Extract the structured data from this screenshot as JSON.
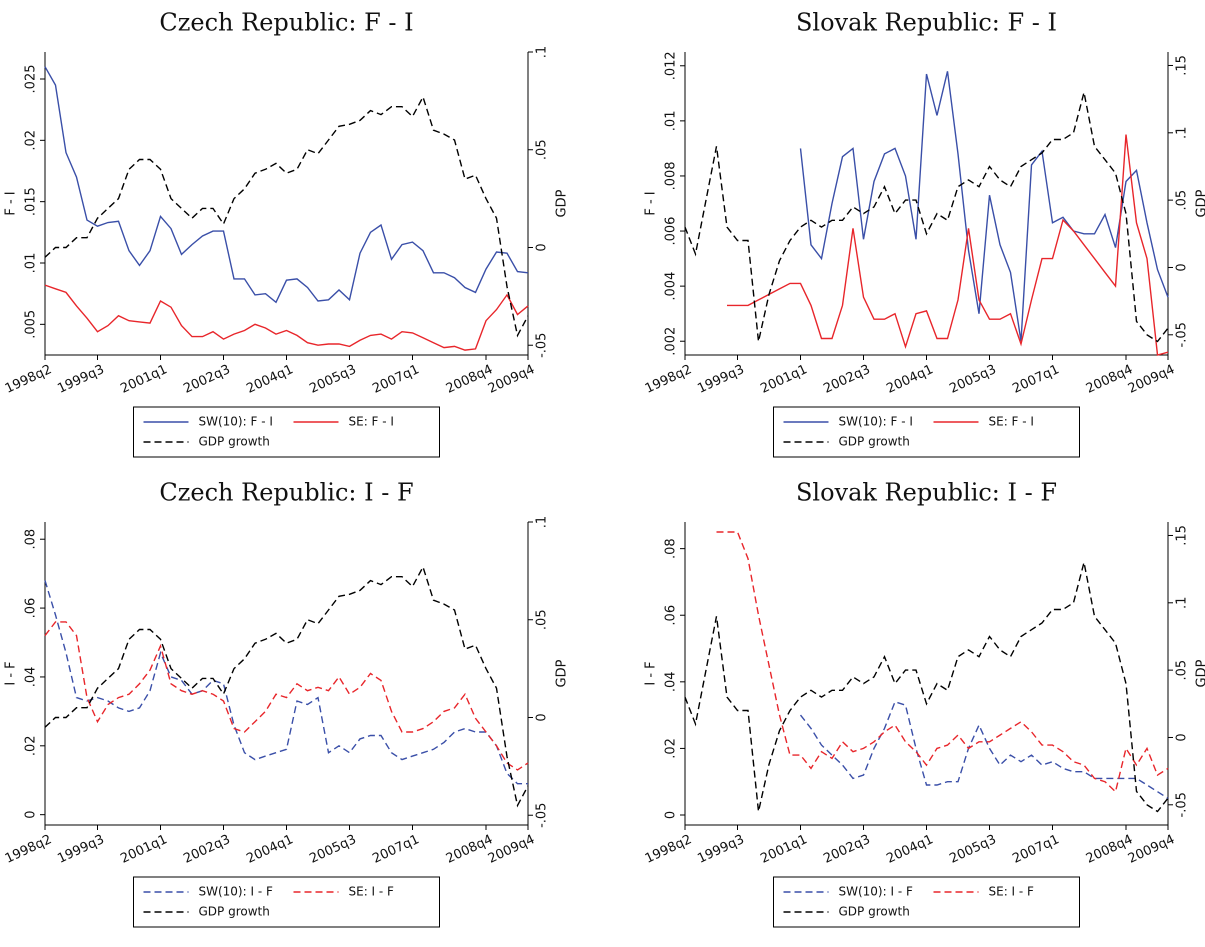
{
  "chart_data": [
    {
      "type": "line",
      "title": "Czech Republic: F - I",
      "ylabel": "F - I",
      "y2label": "GDP",
      "legend": "bottom",
      "categories": [
        "1998q2",
        null,
        null,
        null,
        null,
        "1999q3",
        null,
        null,
        null,
        null,
        null,
        "2001q1",
        null,
        null,
        null,
        null,
        null,
        "2002q3",
        null,
        null,
        null,
        null,
        null,
        "2004q1",
        null,
        null,
        null,
        null,
        null,
        "2005q3",
        null,
        null,
        null,
        null,
        null,
        "2007q1",
        null,
        null,
        null,
        null,
        null,
        null,
        "2008q4",
        null,
        null,
        null,
        "2009q4"
      ],
      "ylim": [
        0.0025,
        0.0272
      ],
      "yticks": [
        {
          "value": 0.005,
          "label": ".005"
        },
        {
          "value": 0.01,
          "label": ".01"
        },
        {
          "value": 0.015,
          "label": ".015"
        },
        {
          "value": 0.02,
          "label": ".02"
        },
        {
          "value": 0.025,
          "label": ".025"
        }
      ],
      "y2lim": [
        -0.055,
        0.1
      ],
      "y2ticks": [
        {
          "value": -0.05,
          "label": "-.05"
        },
        0,
        {
          "value": 0.05,
          "label": ".05"
        },
        {
          "value": 0.1,
          "label": ".1"
        }
      ],
      "series": [
        {
          "name": "SW(10): F - I",
          "color": "#3a4fa8",
          "dashed": false,
          "values": [
            0.026,
            0.0245,
            0.019,
            0.017,
            0.0135,
            0.013,
            0.0133,
            0.0134,
            0.011,
            0.0098,
            0.011,
            0.0138,
            0.0128,
            0.0107,
            0.0115,
            0.0122,
            0.0126,
            0.0126,
            0.0087,
            0.0087,
            0.0074,
            0.0075,
            0.0068,
            0.0086,
            0.0087,
            0.008,
            0.0069,
            0.007,
            0.0078,
            0.007,
            0.0108,
            0.0125,
            0.0131,
            0.0103,
            0.0115,
            0.0117,
            0.011,
            0.0092,
            0.0092,
            0.0088,
            0.008,
            0.0076,
            0.0095,
            0.0109,
            0.0108,
            0.0093,
            0.0092
          ]
        },
        {
          "name": "SE: F - I",
          "color": "#e8262b",
          "dashed": false,
          "values": [
            0.0082,
            0.0079,
            0.0076,
            0.0065,
            0.0055,
            0.0044,
            0.0049,
            0.0057,
            0.0053,
            0.0052,
            0.0051,
            0.0069,
            0.0064,
            0.0049,
            0.004,
            0.004,
            0.0044,
            0.0038,
            0.0042,
            0.0045,
            0.005,
            0.0047,
            0.0042,
            0.0045,
            0.0041,
            0.0035,
            0.0033,
            0.0034,
            0.0034,
            0.0032,
            0.0037,
            0.0041,
            0.0042,
            0.0038,
            0.0044,
            0.0043,
            0.0039,
            0.0035,
            0.0031,
            0.0032,
            0.0029,
            0.003,
            0.0053,
            0.0062,
            0.0074,
            0.0058,
            0.0065
          ]
        },
        {
          "name": "GDP growth",
          "color": "#000000",
          "dashed": true,
          "axis": "y2",
          "values": [
            -0.005,
            0,
            0,
            0.005,
            0.005,
            0.015,
            0.02,
            0.025,
            0.04,
            0.045,
            0.045,
            0.04,
            0.025,
            0.02,
            0.015,
            0.02,
            0.02,
            0.012,
            0.025,
            0.03,
            0.038,
            0.04,
            0.043,
            0.038,
            0.04,
            0.05,
            0.048,
            0.055,
            0.062,
            0.063,
            0.065,
            0.07,
            0.068,
            0.072,
            0.072,
            0.067,
            0.077,
            0.06,
            0.058,
            0.055,
            0.035,
            0.037,
            0.025,
            0.015,
            -0.02,
            -0.045,
            -0.035
          ]
        }
      ]
    },
    {
      "type": "line",
      "title": "Slovak Republic: F - I",
      "ylabel": "F - I",
      "y2label": "GDP",
      "legend": "bottom",
      "categories": [
        "1998q2",
        null,
        null,
        null,
        null,
        "1999q3",
        null,
        null,
        null,
        null,
        null,
        "2001q1",
        null,
        null,
        null,
        null,
        null,
        "2002q3",
        null,
        null,
        null,
        null,
        null,
        "2004q1",
        null,
        null,
        null,
        null,
        null,
        "2005q3",
        null,
        null,
        null,
        null,
        null,
        "2007q1",
        null,
        null,
        null,
        null,
        null,
        null,
        "2008q4",
        null,
        null,
        null,
        "2009q4"
      ],
      "ylim": [
        0.0015,
        0.0125
      ],
      "yticks": [
        {
          "value": 0.002,
          "label": ".002"
        },
        {
          "value": 0.004,
          "label": ".004"
        },
        {
          "value": 0.006,
          "label": ".006"
        },
        {
          "value": 0.008,
          "label": ".008"
        },
        {
          "value": 0.01,
          "label": ".01"
        },
        {
          "value": 0.012,
          "label": ".012"
        }
      ],
      "y2lim": [
        -0.065,
        0.16
      ],
      "y2ticks": [
        {
          "value": -0.05,
          "label": "-.05"
        },
        0,
        {
          "value": 0.05,
          "label": ".05"
        },
        {
          "value": 0.1,
          "label": ".1"
        },
        {
          "value": 0.15,
          "label": ".15"
        }
      ],
      "series": [
        {
          "name": "SW(10): F - I",
          "color": "#3a4fa8",
          "dashed": false,
          "values": [
            null,
            null,
            null,
            null,
            null,
            null,
            null,
            null,
            null,
            null,
            null,
            0.009,
            0.0055,
            0.005,
            0.007,
            0.0087,
            0.009,
            0.0057,
            0.0078,
            0.0088,
            0.009,
            0.008,
            0.0057,
            0.0117,
            0.0102,
            0.0118,
            0.0088,
            0.0053,
            0.003,
            0.0073,
            0.0055,
            0.0045,
            0.002,
            0.0084,
            0.0089,
            0.0063,
            0.0065,
            0.006,
            0.0059,
            0.0059,
            0.0066,
            0.0054,
            0.0078,
            0.0082,
            0.0063,
            0.0046,
            0.0036
          ]
        },
        {
          "name": "SE: F - I",
          "color": "#e8262b",
          "dashed": false,
          "values": [
            null,
            null,
            null,
            null,
            0.0033,
            0.0033,
            0.0033,
            0.0035,
            0.0037,
            0.0039,
            0.0041,
            0.0041,
            0.0033,
            0.0021,
            0.0021,
            0.0033,
            0.0061,
            0.0036,
            0.0028,
            0.0028,
            0.003,
            0.0018,
            0.003,
            0.0031,
            0.0021,
            0.0021,
            0.0035,
            0.0061,
            0.0035,
            0.0028,
            0.0028,
            0.003,
            0.0019,
            0.0035,
            0.005,
            0.005,
            0.0064,
            0.006,
            0.0055,
            0.005,
            0.0045,
            0.004,
            0.0095,
            0.0063,
            0.005,
            0.0015,
            0.0016
          ]
        },
        {
          "name": "GDP growth",
          "color": "#000000",
          "dashed": true,
          "axis": "y2",
          "values": [
            0.03,
            0.01,
            0.05,
            0.09,
            0.03,
            0.02,
            0.02,
            -0.055,
            -0.02,
            0.005,
            0.02,
            0.03,
            0.035,
            0.03,
            0.035,
            0.035,
            0.045,
            0.04,
            0.045,
            0.06,
            0.04,
            0.05,
            0.05,
            0.025,
            0.04,
            0.035,
            0.06,
            0.065,
            0.06,
            0.075,
            0.065,
            0.06,
            0.075,
            0.08,
            0.085,
            0.095,
            0.095,
            0.1,
            0.13,
            0.09,
            0.08,
            0.07,
            0.04,
            -0.04,
            -0.05,
            -0.055,
            -0.045
          ]
        }
      ]
    },
    {
      "type": "line",
      "title": "Czech Republic: I - F",
      "ylabel": "I - F",
      "y2label": "GDP",
      "legend": "bottom",
      "categories": [
        "1998q2",
        null,
        null,
        null,
        null,
        "1999q3",
        null,
        null,
        null,
        null,
        null,
        "2001q1",
        null,
        null,
        null,
        null,
        null,
        "2002q3",
        null,
        null,
        null,
        null,
        null,
        "2004q1",
        null,
        null,
        null,
        null,
        null,
        "2005q3",
        null,
        null,
        null,
        null,
        null,
        "2007q1",
        null,
        null,
        null,
        null,
        null,
        null,
        "2008q4",
        null,
        null,
        null,
        "2009q4"
      ],
      "ylim": [
        -0.003,
        0.085
      ],
      "yticks": [
        0,
        {
          "value": 0.02,
          "label": ".02"
        },
        {
          "value": 0.04,
          "label": ".04"
        },
        {
          "value": 0.06,
          "label": ".06"
        },
        {
          "value": 0.08,
          "label": ".08"
        }
      ],
      "y2lim": [
        -0.055,
        0.1
      ],
      "y2ticks": [
        {
          "value": -0.05,
          "label": "-.05"
        },
        0,
        {
          "value": 0.05,
          "label": ".05"
        },
        {
          "value": 0.1,
          "label": ".1"
        }
      ],
      "series": [
        {
          "name": "SW(10): I - F",
          "color": "#3a4fa8",
          "dashed": true,
          "values": [
            0.068,
            0.058,
            0.047,
            0.034,
            0.033,
            0.034,
            0.033,
            0.031,
            0.03,
            0.031,
            0.036,
            0.047,
            0.04,
            0.039,
            0.035,
            0.036,
            0.039,
            0.038,
            0.026,
            0.018,
            0.016,
            0.017,
            0.018,
            0.019,
            0.033,
            0.032,
            0.034,
            0.018,
            0.02,
            0.018,
            0.022,
            0.023,
            0.023,
            0.018,
            0.016,
            0.017,
            0.018,
            0.019,
            0.021,
            0.024,
            0.025,
            0.024,
            0.024,
            0.02,
            0.012,
            0.009,
            0.009
          ]
        },
        {
          "name": "SE: I - F",
          "color": "#e8262b",
          "dashed": true,
          "values": [
            0.052,
            0.056,
            0.056,
            0.052,
            0.034,
            0.027,
            0.032,
            0.034,
            0.035,
            0.038,
            0.042,
            0.049,
            0.038,
            0.036,
            0.035,
            0.036,
            0.035,
            0.033,
            0.025,
            0.024,
            0.027,
            0.03,
            0.035,
            0.034,
            0.038,
            0.036,
            0.037,
            0.036,
            0.04,
            0.035,
            0.037,
            0.041,
            0.039,
            0.03,
            0.024,
            0.024,
            0.025,
            0.027,
            0.03,
            0.031,
            0.035,
            0.028,
            0.024,
            0.02,
            0.015,
            0.013,
            0.015
          ]
        },
        {
          "name": "GDP growth",
          "color": "#000000",
          "dashed": true,
          "axis": "y2",
          "values": [
            -0.005,
            0,
            0,
            0.005,
            0.005,
            0.015,
            0.02,
            0.025,
            0.04,
            0.045,
            0.045,
            0.04,
            0.025,
            0.02,
            0.015,
            0.02,
            0.02,
            0.012,
            0.025,
            0.03,
            0.038,
            0.04,
            0.043,
            0.038,
            0.04,
            0.05,
            0.048,
            0.055,
            0.062,
            0.063,
            0.065,
            0.07,
            0.068,
            0.072,
            0.072,
            0.067,
            0.077,
            0.06,
            0.058,
            0.055,
            0.035,
            0.037,
            0.025,
            0.015,
            -0.02,
            -0.045,
            -0.035
          ]
        }
      ]
    },
    {
      "type": "line",
      "title": "Slovak Republic: I - F",
      "ylabel": "I - F",
      "y2label": "GDP",
      "legend": "bottom",
      "categories": [
        "1998q2",
        null,
        null,
        null,
        null,
        "1999q3",
        null,
        null,
        null,
        null,
        null,
        "2001q1",
        null,
        null,
        null,
        null,
        null,
        "2002q3",
        null,
        null,
        null,
        null,
        null,
        "2004q1",
        null,
        null,
        null,
        null,
        null,
        "2005q3",
        null,
        null,
        null,
        null,
        null,
        "2007q1",
        null,
        null,
        null,
        null,
        null,
        null,
        "2008q4",
        null,
        null,
        null,
        "2009q4"
      ],
      "ylim": [
        -0.003,
        0.088
      ],
      "yticks": [
        0,
        {
          "value": 0.02,
          "label": ".02"
        },
        {
          "value": 0.04,
          "label": ".04"
        },
        {
          "value": 0.06,
          "label": ".06"
        },
        {
          "value": 0.08,
          "label": ".08"
        }
      ],
      "y2lim": [
        -0.065,
        0.16
      ],
      "y2ticks": [
        {
          "value": -0.05,
          "label": "-.05"
        },
        0,
        {
          "value": 0.05,
          "label": ".05"
        },
        {
          "value": 0.1,
          "label": ".1"
        },
        {
          "value": 0.15,
          "label": ".15"
        }
      ],
      "series": [
        {
          "name": "SW(10): I - F",
          "color": "#3a4fa8",
          "dashed": true,
          "values": [
            null,
            null,
            null,
            null,
            null,
            null,
            null,
            null,
            null,
            null,
            null,
            0.03,
            0.026,
            0.021,
            0.018,
            0.015,
            0.011,
            0.012,
            0.02,
            0.026,
            0.034,
            0.033,
            0.02,
            0.009,
            0.009,
            0.01,
            0.01,
            0.02,
            0.027,
            0.02,
            0.015,
            0.018,
            0.016,
            0.018,
            0.015,
            0.016,
            0.014,
            0.013,
            0.013,
            0.011,
            0.011,
            0.011,
            0.011,
            0.011,
            0.009,
            0.007,
            0.005
          ]
        },
        {
          "name": "SE: I - F",
          "color": "#e8262b",
          "dashed": true,
          "values": [
            null,
            null,
            null,
            0.085,
            0.085,
            0.085,
            0.077,
            0.06,
            0.045,
            0.03,
            0.018,
            0.018,
            0.014,
            0.019,
            0.017,
            0.022,
            0.019,
            0.02,
            0.022,
            0.025,
            0.027,
            0.022,
            0.019,
            0.015,
            0.02,
            0.021,
            0.024,
            0.02,
            0.022,
            0.022,
            0.024,
            0.026,
            0.028,
            0.025,
            0.021,
            0.021,
            0.019,
            0.016,
            0.015,
            0.011,
            0.01,
            0.007,
            0.02,
            0.015,
            0.02,
            0.012,
            0.014
          ]
        },
        {
          "name": "GDP growth",
          "color": "#000000",
          "dashed": true,
          "axis": "y2",
          "values": [
            0.03,
            0.01,
            0.05,
            0.09,
            0.03,
            0.02,
            0.02,
            -0.055,
            -0.02,
            0.005,
            0.02,
            0.03,
            0.035,
            0.03,
            0.035,
            0.035,
            0.045,
            0.04,
            0.045,
            0.06,
            0.04,
            0.05,
            0.05,
            0.025,
            0.04,
            0.035,
            0.06,
            0.065,
            0.06,
            0.075,
            0.065,
            0.06,
            0.075,
            0.08,
            0.085,
            0.095,
            0.095,
            0.1,
            0.13,
            0.09,
            0.08,
            0.07,
            0.04,
            -0.04,
            -0.05,
            -0.055,
            -0.045
          ]
        }
      ]
    }
  ]
}
